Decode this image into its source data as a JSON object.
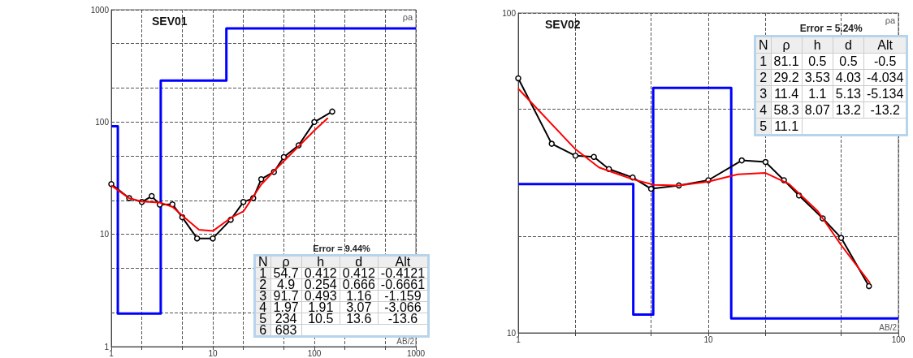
{
  "chart_data": [
    {
      "type": "line",
      "title": "SEV01",
      "xlabel": "AB/2",
      "ylabel": "ρa",
      "log": "xy",
      "grid": true,
      "xlim": [
        1,
        1000
      ],
      "ylim": [
        1,
        1000
      ],
      "xticks": [
        1,
        {
          "value": 2,
          "label": null
        },
        {
          "value": 5,
          "label": null
        },
        10,
        {
          "value": 20,
          "label": null
        },
        {
          "value": 50,
          "label": null
        },
        100,
        {
          "value": 200,
          "label": null
        },
        {
          "value": 500,
          "label": null
        },
        1000
      ],
      "yticks": [
        1,
        {
          "value": 2,
          "label": null
        },
        {
          "value": 5,
          "label": null
        },
        10,
        {
          "value": 20,
          "label": null
        },
        {
          "value": 50,
          "label": null
        },
        100,
        {
          "value": 200,
          "label": null
        },
        {
          "value": 500,
          "label": null
        },
        1000
      ],
      "series": [
        {
          "type": "step",
          "color": "#0000ff",
          "x": [
            1,
            1.16,
            3.07,
            13.6,
            1000
          ],
          "values": [
            91.7,
            1.97,
            234,
            683,
            683
          ]
        },
        {
          "type": "line",
          "color": "#000000",
          "marker": "circle",
          "x": [
            1,
            1.5,
            2,
            2.5,
            3,
            4,
            5,
            7,
            10,
            15,
            20,
            25,
            30,
            40,
            50,
            70,
            100,
            150
          ],
          "values": [
            28,
            21,
            19.4,
            21.9,
            18.4,
            18.5,
            14.2,
            9.2,
            9.2,
            13.5,
            19.4,
            21,
            31,
            36,
            48.7,
            62,
            100,
            124
          ]
        },
        {
          "type": "line",
          "color": "#ff0000",
          "x": [
            1,
            1.5,
            2,
            3,
            4,
            5,
            7.3,
            10,
            15,
            20,
            30,
            40,
            50,
            100,
            136
          ],
          "values": [
            27.3,
            21,
            19.6,
            19.2,
            17.6,
            14.7,
            11,
            10.7,
            14,
            16,
            27.8,
            36.6,
            44.9,
            84,
            109
          ]
        }
      ],
      "annotations": [
        "Error = 9.44%",
        "N",
        "ρ",
        "h",
        "d",
        "Alt",
        "1",
        "54.7",
        "0.412",
        "0.412",
        "-0.4121",
        "2",
        "4.9",
        "0.254",
        "0.666",
        "-0.6661",
        "3",
        "91.7",
        "0.493",
        "1.16",
        "-1.159",
        "4",
        "1.97",
        "1.91",
        "3.07",
        "-3.066",
        "5",
        "234",
        "10.5",
        "13.6",
        "-13.6",
        "6",
        "683"
      ]
    },
    {
      "type": "line",
      "title": "SEV02",
      "xlabel": "AB/2",
      "ylabel": "ρa",
      "log": "xy",
      "grid": true,
      "xlim": [
        1,
        100
      ],
      "ylim": [
        10,
        100
      ],
      "xticks": [
        1,
        {
          "value": 2,
          "label": null
        },
        {
          "value": 5,
          "label": null
        },
        10,
        {
          "value": 20,
          "label": null
        },
        {
          "value": 50,
          "label": null
        },
        100
      ],
      "yticks": [
        10,
        {
          "value": 20,
          "label": null
        },
        {
          "value": 50,
          "label": null
        },
        100
      ],
      "series": [
        {
          "type": "step",
          "color": "#0000ff",
          "x": [
            1,
            4.03,
            5.13,
            13.2,
            100
          ],
          "values": [
            29.2,
            11.4,
            58.3,
            11.1,
            11.1
          ]
        },
        {
          "type": "line",
          "color": "#000000",
          "marker": "circle",
          "x": [
            1,
            1.5,
            2,
            2.5,
            3,
            4,
            5,
            7,
            10,
            15,
            20,
            25,
            30,
            40,
            50,
            70
          ],
          "values": [
            62.5,
            39,
            35.8,
            35.5,
            32.5,
            30.6,
            28.2,
            28.9,
            30,
            34.6,
            34.2,
            30,
            26.9,
            22.8,
            19.8,
            14
          ]
        },
        {
          "type": "line",
          "color": "#ff0000",
          "x": [
            1,
            2,
            2.66,
            4,
            5.2,
            7,
            10,
            14.3,
            20,
            26.6,
            37.7,
            50,
            71
          ],
          "values": [
            58,
            37.5,
            32.9,
            30.2,
            29,
            28.9,
            29.7,
            31.3,
            31.6,
            29.2,
            24,
            18.8,
            14.3
          ]
        }
      ],
      "annotations": [
        "Error = 5.24%",
        "N",
        "ρ",
        "h",
        "d",
        "Alt",
        "1",
        "81.1",
        "0.5",
        "0.5",
        "-0.5",
        "2",
        "29.2",
        "3.53",
        "4.03",
        "-4.034",
        "3",
        "11.4",
        "1.1",
        "5.13",
        "-5.134",
        "4",
        "58.3",
        "8.07",
        "13.2",
        "-13.2",
        "5",
        "11.1"
      ]
    }
  ]
}
